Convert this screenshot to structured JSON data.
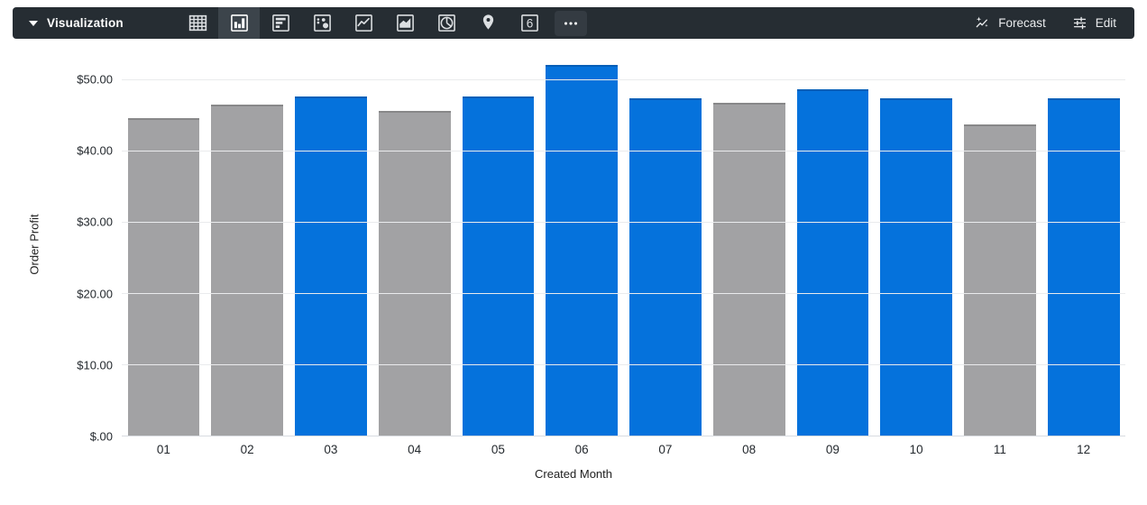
{
  "toolbar": {
    "title": "Visualization",
    "forecast_label": "Forecast",
    "edit_label": "Edit",
    "colors": {
      "background": "#262D33",
      "selected_icon_background": "#3C444B",
      "icon": "#DCDFE2"
    },
    "icons": [
      {
        "name": "table",
        "selected": false
      },
      {
        "name": "column-chart",
        "selected": true
      },
      {
        "name": "bar-chart",
        "selected": false
      },
      {
        "name": "scatter",
        "selected": false
      },
      {
        "name": "line-chart",
        "selected": false
      },
      {
        "name": "area-chart",
        "selected": false
      },
      {
        "name": "pie-chart",
        "selected": false
      },
      {
        "name": "map-pin",
        "selected": false
      },
      {
        "name": "single-value",
        "selected": false,
        "glyph": "6"
      },
      {
        "name": "more-options",
        "selected": false
      }
    ]
  },
  "chart_data": {
    "type": "bar",
    "title": "",
    "xlabel": "Created Month",
    "ylabel": "Order Profit",
    "categories": [
      "01",
      "02",
      "03",
      "04",
      "05",
      "06",
      "07",
      "08",
      "09",
      "10",
      "11",
      "12"
    ],
    "values": [
      44.5,
      46.5,
      47.6,
      45.6,
      47.6,
      52.0,
      47.3,
      46.7,
      48.6,
      47.3,
      43.7,
      47.3
    ],
    "bar_colors": [
      "gray",
      "gray",
      "blue",
      "gray",
      "blue",
      "blue",
      "blue",
      "gray",
      "blue",
      "blue",
      "gray",
      "blue"
    ],
    "palette": {
      "blue": "#0572DC",
      "gray": "#A2A2A4"
    },
    "y_ticks": [
      {
        "label": "$50.00",
        "value": 50
      },
      {
        "label": "$40.00",
        "value": 40
      },
      {
        "label": "$30.00",
        "value": 30
      },
      {
        "label": "$20.00",
        "value": 20
      },
      {
        "label": "$10.00",
        "value": 10
      },
      {
        "label": "$.00",
        "value": 0
      }
    ],
    "ylim": [
      0,
      53.8
    ],
    "grid": true,
    "legend": "none"
  }
}
